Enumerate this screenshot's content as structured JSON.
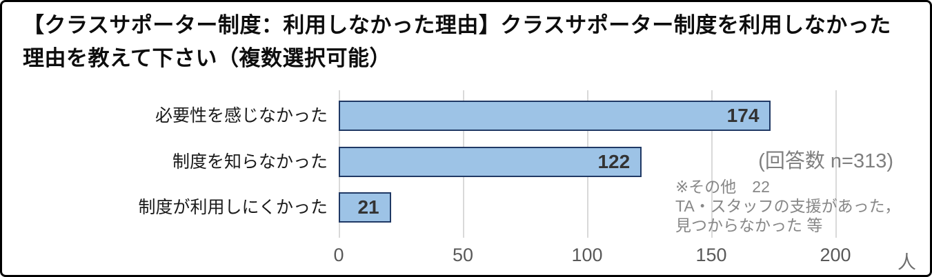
{
  "title": "【クラスサポーター制度：利用しなかった理由】クラスサポーター制度を利用しなかった理由を教えて下さい（複数選択可能）",
  "chart_data": {
    "type": "bar",
    "orientation": "horizontal",
    "categories": [
      "必要性を感じなかった",
      "制度を知らなかった",
      "制度が利用しにくかった"
    ],
    "values": [
      174,
      122,
      21
    ],
    "xlim": [
      0,
      200
    ],
    "xticks": [
      0,
      50,
      100,
      150,
      200
    ],
    "x_unit": "人",
    "grid": true,
    "bar_fill": "#9dc3e6",
    "bar_border": "#1f3864",
    "value_labels": "inside-end"
  },
  "annotations": {
    "response_count": "(回答数 n=313)",
    "note_line1": "※その他　22",
    "note_line2": "TA・スタッフの支援があった，",
    "note_line3": "見つからなかった 等"
  }
}
